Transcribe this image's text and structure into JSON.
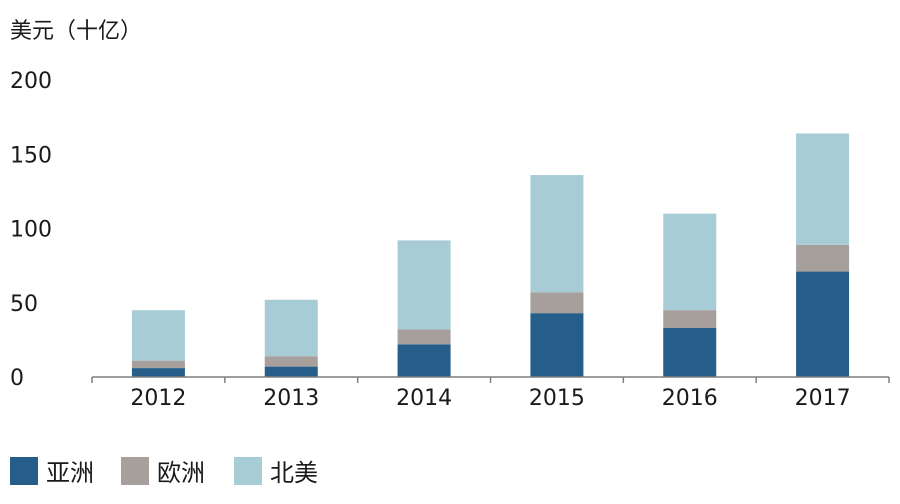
{
  "chart_data": {
    "type": "bar",
    "stacked": true,
    "ylabel": "美元（十亿）",
    "ylim": [
      0,
      200
    ],
    "yticks": [
      0,
      50,
      100,
      150,
      200
    ],
    "categories": [
      "2012",
      "2013",
      "2014",
      "2015",
      "2016",
      "2017"
    ],
    "series": [
      {
        "name": "亚洲",
        "color": "#255e8a",
        "values": [
          6,
          7,
          22,
          43,
          33,
          71
        ]
      },
      {
        "name": "欧洲",
        "color": "#a69f9c",
        "values": [
          5,
          7,
          10,
          14,
          12,
          18
        ]
      },
      {
        "name": "北美",
        "color": "#a8ccd6",
        "values": [
          34,
          38,
          60,
          79,
          65,
          75
        ]
      }
    ],
    "grid": false,
    "legend_position": "bottom-left"
  }
}
